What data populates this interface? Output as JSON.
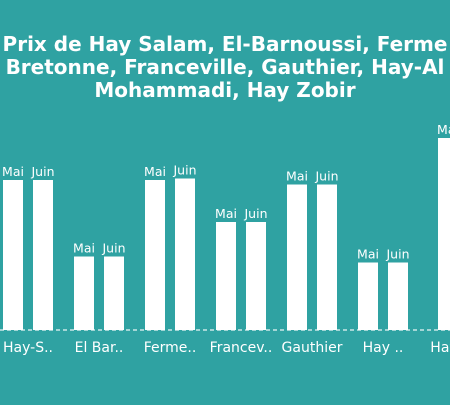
{
  "colors": {
    "background": "#2fa2a2",
    "bars": "#ffffff",
    "text": "#ffffff"
  },
  "chart_data": {
    "type": "bar",
    "title_lines": [
      "Prix de Hay Salam, El-Barnoussi, Ferme",
      "Bretonne, Franceville, Gauthier, Hay-Al",
      "Mohammadi, Hay Zobir"
    ],
    "categories": [
      "Hay-S..",
      "El Bar..",
      "Ferme..",
      "Francev..",
      "Gauthier",
      "Hay ..",
      "Hay"
    ],
    "series": [
      {
        "name": "Mai",
        "values": [
          100,
          49,
          100,
          72,
          97,
          45,
          128
        ]
      },
      {
        "name": "Juin",
        "values": [
          100,
          49,
          101,
          72,
          97,
          45,
          null
        ]
      }
    ],
    "bar_labels": [
      "Mai",
      "Juin"
    ],
    "xlabel": "",
    "ylabel": "",
    "ylim": [
      0,
      140
    ],
    "grid": false,
    "legend": "none"
  }
}
